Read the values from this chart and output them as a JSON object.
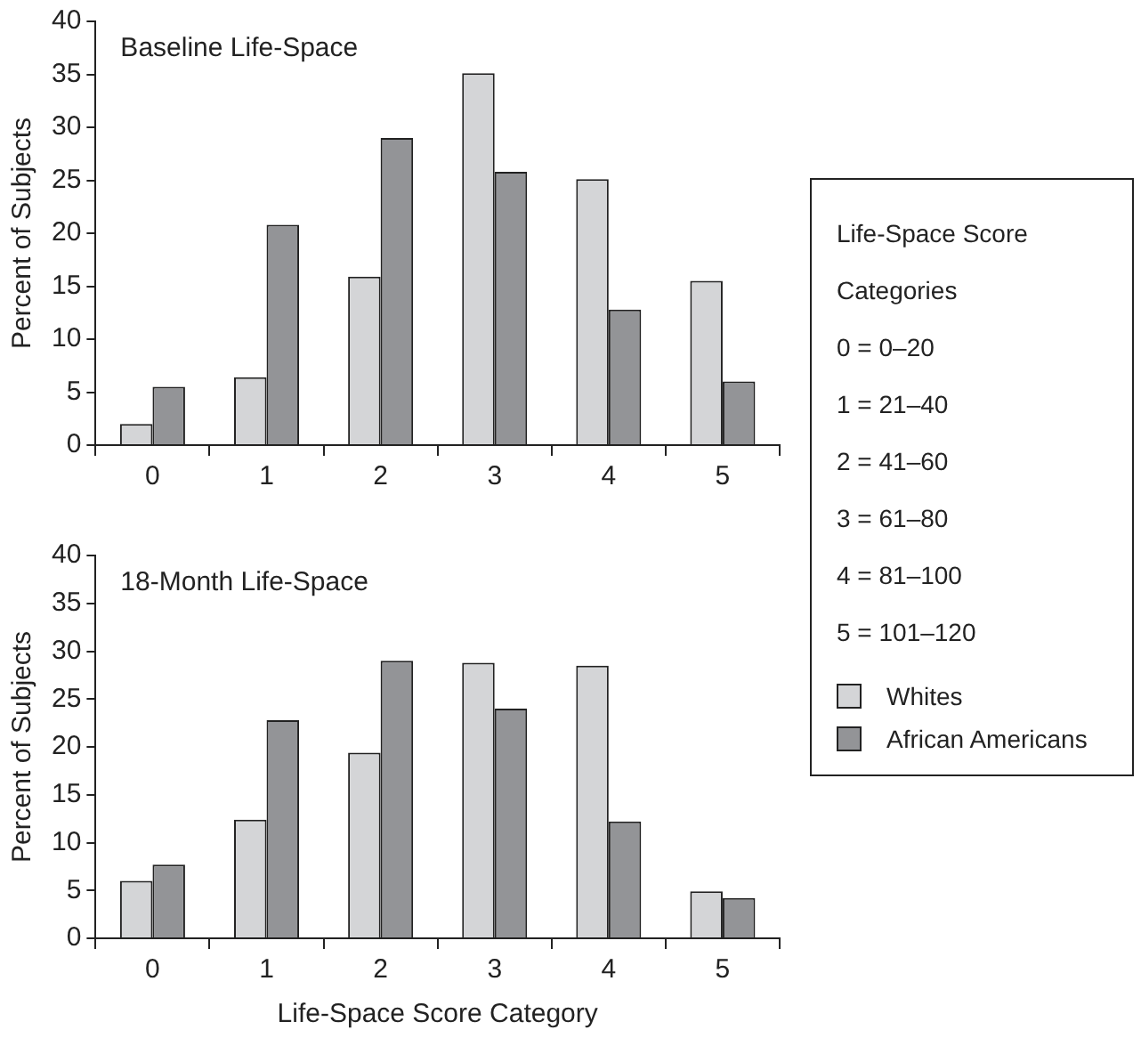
{
  "chart_data": [
    {
      "type": "bar",
      "title": "Baseline Life-Space",
      "ylabel": "Percent of Subjects",
      "categories": [
        "0",
        "1",
        "2",
        "3",
        "4",
        "5"
      ],
      "series": [
        {
          "name": "Whites",
          "color": "#d4d5d7",
          "values": [
            2,
            6.4,
            15.9,
            35.1,
            25.1,
            15.5
          ]
        },
        {
          "name": "African Americans",
          "color": "#939497",
          "values": [
            5.5,
            20.8,
            29,
            25.8,
            12.8,
            6
          ]
        }
      ],
      "ylim": [
        0,
        40
      ],
      "yticks": [
        0,
        5,
        10,
        15,
        20,
        25,
        30,
        35,
        40
      ],
      "grid": false,
      "legend": "right",
      "legend_title": "Life-Space Score Categories",
      "annotations": [
        "0 = 0–20",
        "1 = 21–40",
        "2 = 41–60",
        "3 = 61–80",
        "4 = 81–100",
        "5 = 101–120"
      ]
    },
    {
      "type": "bar",
      "title": "18-Month Life-Space",
      "ylabel": "Percent of Subjects",
      "xlabel": "Life-Space Score Category",
      "categories": [
        "0",
        "1",
        "2",
        "3",
        "4",
        "5"
      ],
      "series": [
        {
          "color": "#d4d5d7",
          "values": [
            6,
            12.4,
            19.4,
            28.8,
            28.5,
            4.9
          ]
        },
        {
          "color": "#939497",
          "values": [
            7.7,
            22.8,
            29,
            24,
            12.2,
            4.2
          ]
        }
      ],
      "ylim": [
        0,
        40
      ],
      "yticks": [
        0,
        5,
        10,
        15,
        20,
        25,
        30,
        35,
        40
      ],
      "grid": false
    }
  ]
}
